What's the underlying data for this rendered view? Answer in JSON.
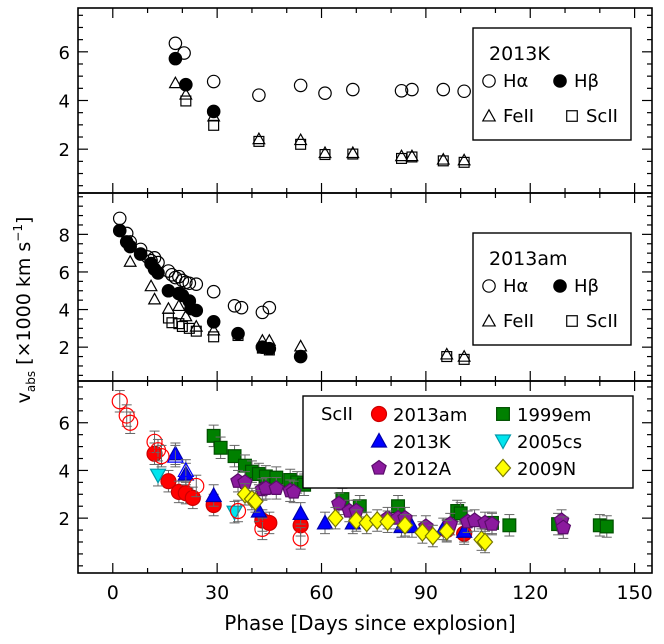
{
  "figure": {
    "ylabel": "v",
    "ylabel_sub": "abs",
    "ylabel_units": "[×1000 km s",
    "ylabel_exp": "−1",
    "ylabel_close": "]",
    "xlabel": "Phase [Days since explosion]",
    "x_ticks": [
      "0",
      "30",
      "60",
      "90",
      "120",
      "150"
    ]
  },
  "chart_data": [
    {
      "type": "scatter",
      "panel": "top",
      "xlim": [
        -10,
        155
      ],
      "ylim": [
        0.2,
        7.8
      ],
      "y_ticks": [
        2,
        4,
        6
      ],
      "legend": {
        "title": "2013K",
        "entries": [
          "Hα",
          "Hβ",
          "FeII",
          "ScII"
        ],
        "placement": "top-right"
      },
      "series": [
        {
          "name": "Hα",
          "marker": "open-circle",
          "points": [
            [
              18,
              6.35
            ],
            [
              20.5,
              5.95
            ],
            [
              29,
              4.78
            ],
            [
              42,
              4.22
            ],
            [
              54,
              4.62
            ],
            [
              61,
              4.3
            ],
            [
              69,
              4.45
            ],
            [
              83,
              4.4
            ],
            [
              86,
              4.45
            ],
            [
              95,
              4.45
            ],
            [
              101,
              4.38
            ]
          ]
        },
        {
          "name": "Hβ",
          "marker": "filled-circle",
          "points": [
            [
              18,
              5.72
            ],
            [
              21,
              4.65
            ],
            [
              29,
              3.55
            ]
          ]
        },
        {
          "name": "FeII",
          "marker": "open-triangle",
          "points": [
            [
              18,
              4.72
            ],
            [
              21,
              4.25
            ],
            [
              29,
              3.35
            ],
            [
              42,
              2.42
            ],
            [
              54,
              2.38
            ],
            [
              61,
              1.85
            ],
            [
              69,
              1.85
            ],
            [
              83,
              1.72
            ],
            [
              86,
              1.72
            ],
            [
              95,
              1.58
            ],
            [
              101,
              1.55
            ]
          ]
        },
        {
          "name": "ScII",
          "marker": "open-square",
          "points": [
            [
              21,
              3.98
            ],
            [
              29,
              2.98
            ],
            [
              42,
              2.32
            ],
            [
              54,
              2.2
            ],
            [
              61,
              1.78
            ],
            [
              69,
              1.8
            ],
            [
              83,
              1.62
            ],
            [
              86,
              1.68
            ],
            [
              95,
              1.52
            ],
            [
              101,
              1.46
            ]
          ]
        }
      ]
    },
    {
      "type": "scatter",
      "panel": "middle",
      "xlim": [
        -10,
        155
      ],
      "ylim": [
        0.2,
        10.2
      ],
      "y_ticks": [
        2,
        4,
        6,
        8
      ],
      "legend": {
        "title": "2013am",
        "entries": [
          "Hα",
          "Hβ",
          "FeII",
          "ScII"
        ],
        "placement": "right"
      },
      "series": [
        {
          "name": "Hα",
          "marker": "open-circle",
          "points": [
            [
              2,
              8.85
            ],
            [
              4,
              8.05
            ],
            [
              5,
              7.6
            ],
            [
              8,
              7.2
            ],
            [
              10,
              6.8
            ],
            [
              11,
              6.6
            ],
            [
              12,
              6.75
            ],
            [
              13,
              6.5
            ],
            [
              16,
              6.05
            ],
            [
              17,
              5.85
            ],
            [
              18,
              5.7
            ],
            [
              19,
              5.75
            ],
            [
              20,
              5.55
            ],
            [
              21,
              5.45
            ],
            [
              22,
              5.4
            ],
            [
              24,
              5.35
            ],
            [
              29,
              4.95
            ],
            [
              35,
              4.2
            ],
            [
              37,
              4.1
            ],
            [
              43,
              3.85
            ],
            [
              45,
              4.1
            ]
          ]
        },
        {
          "name": "Hβ",
          "marker": "filled-circle",
          "points": [
            [
              2,
              8.2
            ],
            [
              4,
              7.6
            ],
            [
              5,
              7.35
            ],
            [
              8,
              6.95
            ],
            [
              11,
              6.45
            ],
            [
              12,
              6.15
            ],
            [
              13,
              5.95
            ],
            [
              16,
              5.0
            ],
            [
              19,
              4.85
            ],
            [
              20,
              4.75
            ],
            [
              22,
              4.45
            ],
            [
              22.5,
              4.05
            ],
            [
              24,
              3.95
            ],
            [
              29,
              3.35
            ],
            [
              36,
              2.72
            ],
            [
              43,
              2.0
            ],
            [
              45,
              1.92
            ],
            [
              54,
              1.5
            ]
          ]
        },
        {
          "name": "FeII",
          "marker": "open-triangle",
          "points": [
            [
              5,
              6.55
            ],
            [
              11,
              5.25
            ],
            [
              12,
              4.55
            ],
            [
              16,
              4.05
            ],
            [
              19,
              4.2
            ],
            [
              21,
              3.65
            ],
            [
              24,
              3.1
            ],
            [
              29,
              2.9
            ],
            [
              43,
              2.35
            ],
            [
              45,
              2.35
            ],
            [
              54,
              2.05
            ],
            [
              96,
              1.62
            ],
            [
              101,
              1.5
            ]
          ]
        },
        {
          "name": "ScII",
          "marker": "open-square",
          "points": [
            [
              16,
              3.55
            ],
            [
              17,
              3.3
            ],
            [
              19,
              3.25
            ],
            [
              20,
              3.1
            ],
            [
              22,
              3.0
            ],
            [
              24,
              2.85
            ],
            [
              29,
              2.55
            ],
            [
              36,
              2.62
            ],
            [
              43,
              1.95
            ],
            [
              45,
              1.85
            ],
            [
              96,
              1.5
            ],
            [
              101,
              1.35
            ]
          ]
        }
      ]
    },
    {
      "type": "scatter",
      "panel": "bottom",
      "xlim": [
        -10,
        155
      ],
      "ylim": [
        -0.3,
        7.75
      ],
      "y_ticks": [
        2,
        4,
        6
      ],
      "legend": {
        "title": "ScII",
        "entries": [
          "2013am",
          "1999em",
          "2013K",
          "2005cs",
          "2012A",
          "2009N"
        ],
        "placement": "top-right"
      },
      "series": [
        {
          "name": "2013am",
          "marker": "filled-circle",
          "color": "#ff0000",
          "points": [
            [
              12,
              4.7
            ],
            [
              16,
              3.55
            ],
            [
              19,
              3.1
            ],
            [
              21,
              3.05
            ],
            [
              23,
              2.85
            ],
            [
              29,
              2.55
            ],
            [
              43,
              1.9
            ],
            [
              45,
              1.8
            ],
            [
              54,
              1.7
            ],
            [
              96,
              1.5
            ],
            [
              101,
              1.35
            ]
          ]
        },
        {
          "name": "1999em",
          "marker": "filled-square",
          "color": "#008000",
          "points": [
            [
              29,
              5.45
            ],
            [
              31,
              4.95
            ],
            [
              35,
              4.6
            ],
            [
              38,
              4.2
            ],
            [
              40,
              3.95
            ],
            [
              42,
              3.85
            ],
            [
              44,
              3.75
            ],
            [
              47,
              3.7
            ],
            [
              51,
              3.6
            ],
            [
              53,
              3.5
            ],
            [
              55,
              3.4
            ],
            [
              66,
              2.8
            ],
            [
              71,
              2.5
            ],
            [
              82,
              2.5
            ],
            [
              99,
              2.3
            ],
            [
              100,
              2.2
            ],
            [
              109,
              1.8
            ],
            [
              114,
              1.7
            ],
            [
              128,
              1.75
            ],
            [
              140,
              1.7
            ],
            [
              142,
              1.65
            ]
          ]
        },
        {
          "name": "2013K",
          "marker": "filled-triangle",
          "color": "#0000ff",
          "points": [
            [
              18,
              4.7
            ],
            [
              21,
              3.85
            ],
            [
              29,
              2.95
            ],
            [
              42,
              2.3
            ],
            [
              54,
              2.2
            ],
            [
              61,
              1.8
            ],
            [
              69,
              1.8
            ],
            [
              83,
              1.65
            ],
            [
              86,
              1.65
            ],
            [
              95,
              1.55
            ],
            [
              101,
              1.45
            ]
          ]
        },
        {
          "name": "2005cs",
          "marker": "filled-inverted-triangle",
          "color": "#00e5ee",
          "points": [
            [
              13,
              3.8
            ],
            [
              35,
              2.25
            ]
          ]
        },
        {
          "name": "2012A",
          "marker": "filled-pentagon",
          "color": "#8b1a9e",
          "points": [
            [
              36,
              3.55
            ],
            [
              38,
              3.5
            ],
            [
              43,
              3.2
            ],
            [
              44,
              3.25
            ],
            [
              47,
              3.25
            ],
            [
              51,
              3.15
            ],
            [
              52,
              3.1
            ],
            [
              65,
              2.6
            ],
            [
              68,
              2.3
            ],
            [
              70,
              2.3
            ],
            [
              79,
              2.0
            ],
            [
              82,
              2.0
            ],
            [
              84,
              2.0
            ],
            [
              90,
              1.65
            ],
            [
              97,
              1.75
            ],
            [
              102,
              1.85
            ],
            [
              104,
              1.9
            ],
            [
              107,
              1.8
            ],
            [
              109,
              1.75
            ],
            [
              129,
              1.9
            ],
            [
              129.5,
              1.6
            ]
          ]
        },
        {
          "name": "2009N",
          "marker": "filled-diamond",
          "color": "#ffff00",
          "points": [
            [
              38,
              3.0
            ],
            [
              40,
              2.8
            ],
            [
              41,
              2.7
            ],
            [
              64,
              2.0
            ],
            [
              70,
              1.9
            ],
            [
              73,
              1.8
            ],
            [
              76,
              1.9
            ],
            [
              79,
              1.85
            ],
            [
              84,
              1.7
            ],
            [
              89,
              1.4
            ],
            [
              92,
              1.25
            ],
            [
              96,
              1.45
            ],
            [
              106,
              1.1
            ],
            [
              107,
              1.0
            ]
          ]
        },
        {
          "name": "2013am (open)",
          "marker": "open-circle",
          "color": "#ff0000",
          "points": [
            [
              2,
              6.9
            ],
            [
              4,
              6.3
            ],
            [
              5,
              6.0
            ],
            [
              12,
              5.2
            ],
            [
              13,
              4.85
            ],
            [
              14,
              4.6
            ],
            [
              24,
              3.35
            ],
            [
              36,
              2.3
            ],
            [
              43,
              1.55
            ],
            [
              54,
              1.15
            ]
          ]
        },
        {
          "name": "2013K (open)",
          "marker": "open-triangle",
          "color": "#0000ff",
          "points": [
            [
              18,
              4.6
            ],
            [
              21,
              4.0
            ]
          ]
        }
      ]
    }
  ]
}
